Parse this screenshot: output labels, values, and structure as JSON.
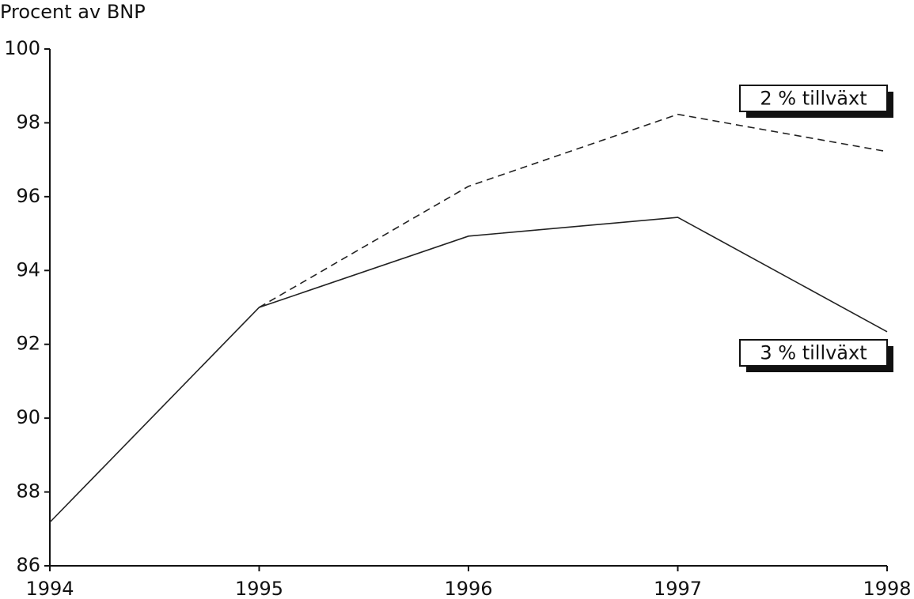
{
  "chart_data": {
    "type": "line",
    "ylabel": "Procent av BNP",
    "x": [
      1994,
      1995,
      1996,
      1997,
      1998
    ],
    "xlim": [
      1994,
      1998
    ],
    "xticks": [
      1994,
      1995,
      1996,
      1997,
      1998
    ],
    "ylim": [
      86,
      100
    ],
    "yticks": [
      86,
      88,
      90,
      92,
      94,
      96,
      98,
      100
    ],
    "series": [
      {
        "name": "2 % tillväxt",
        "color": "#222222",
        "style": "dashed",
        "values": [
          null,
          93.0,
          96.28,
          98.23,
          97.22
        ]
      },
      {
        "name": "3 % tillväxt",
        "color": "#222222",
        "style": "solid",
        "values": [
          87.18,
          93.0,
          94.93,
          95.44,
          92.34
        ]
      }
    ]
  }
}
